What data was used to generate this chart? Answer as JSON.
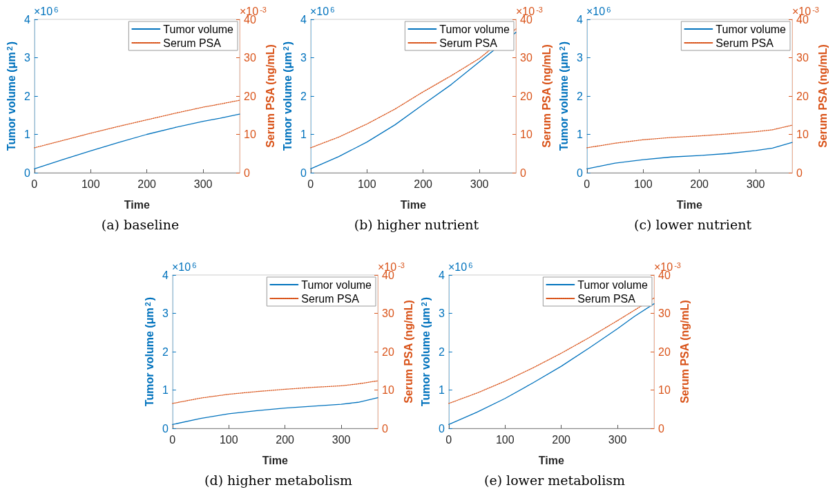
{
  "chart_data": [
    {
      "type": "line",
      "title": "(a) baseline",
      "xlabel": "Time",
      "ylabel": "Tumor volume (μm$^{2}$)",
      "y2label": "Serum PSA (ng/mL)",
      "annotations": [
        "×10$^{6}$",
        "×10$^{-3}$"
      ],
      "x": [
        0,
        50,
        100,
        150,
        200,
        250,
        300,
        330,
        365
      ],
      "xlim": [
        0,
        365
      ],
      "xticks": [
        0,
        100,
        200,
        300
      ],
      "ylim": [
        0,
        4
      ],
      "yticks": [
        0,
        1,
        2,
        3,
        4
      ],
      "y2lim": [
        0,
        40
      ],
      "y2ticks": [
        0,
        10,
        20,
        30,
        40
      ],
      "legend": "top right",
      "marker": "none",
      "series": [
        {
          "name": "Tumor volume",
          "color": "#0072bd",
          "line_style": "solid",
          "values": [
            0.1,
            0.34,
            0.57,
            0.79,
            1.0,
            1.18,
            1.34,
            1.42,
            1.53
          ]
        },
        {
          "name": "Serum PSA",
          "color": "#d95319",
          "line_style": "dotted",
          "axis": "y2",
          "values": [
            6.5,
            8.4,
            10.3,
            12.1,
            13.8,
            15.5,
            17.1,
            17.9,
            18.9
          ]
        }
      ]
    },
    {
      "type": "line",
      "title": "(b) higher nutrient",
      "xlabel": "Time",
      "ylabel": "Tumor volume (μm$^{2}$)",
      "y2label": "Serum PSA (ng/mL)",
      "annotations": [
        "×10$^{6}$",
        "×10$^{-3}$"
      ],
      "x": [
        0,
        50,
        100,
        150,
        200,
        250,
        300,
        365
      ],
      "xlim": [
        0,
        365
      ],
      "xticks": [
        0,
        100,
        200,
        300
      ],
      "ylim": [
        0,
        4
      ],
      "yticks": [
        0,
        1,
        2,
        3,
        4
      ],
      "y2lim": [
        0,
        40
      ],
      "y2ticks": [
        0,
        10,
        20,
        30,
        40
      ],
      "legend": "top right",
      "marker": "none",
      "series": [
        {
          "name": "Tumor volume",
          "color": "#0072bd",
          "line_style": "solid",
          "values": [
            0.1,
            0.42,
            0.8,
            1.25,
            1.78,
            2.3,
            2.89,
            3.66
          ]
        },
        {
          "name": "Serum PSA",
          "color": "#d95319",
          "line_style": "dotted",
          "axis": "y2",
          "values": [
            6.5,
            9.3,
            12.7,
            16.6,
            21.1,
            25.3,
            29.8,
            37.5
          ]
        }
      ]
    },
    {
      "type": "line",
      "title": "(c) lower nutrient",
      "xlabel": "Time",
      "ylabel": "Tumor volume (μm$^{2}$)",
      "y2label": "Serum PSA (ng/mL)",
      "annotations": [
        "×10$^{6}$",
        "×10$^{-3}$"
      ],
      "x": [
        0,
        50,
        100,
        150,
        200,
        250,
        300,
        330,
        365
      ],
      "xlim": [
        0,
        365
      ],
      "xticks": [
        0,
        100,
        200,
        300
      ],
      "ylim": [
        0,
        4
      ],
      "yticks": [
        0,
        1,
        2,
        3,
        4
      ],
      "y2lim": [
        0,
        40
      ],
      "y2ticks": [
        0,
        10,
        20,
        30,
        40
      ],
      "legend": "top right",
      "marker": "none",
      "series": [
        {
          "name": "Tumor volume",
          "color": "#0072bd",
          "line_style": "solid",
          "values": [
            0.1,
            0.25,
            0.34,
            0.41,
            0.45,
            0.5,
            0.58,
            0.64,
            0.79
          ]
        },
        {
          "name": "Serum PSA",
          "color": "#d95319",
          "line_style": "dotted",
          "axis": "y2",
          "values": [
            6.5,
            7.7,
            8.6,
            9.2,
            9.6,
            10.1,
            10.7,
            11.2,
            12.4
          ]
        }
      ]
    },
    {
      "type": "line",
      "title": "(d) higher metabolism",
      "xlabel": "Time",
      "ylabel": "Tumor volume (μm$^{2}$)",
      "y2label": "Serum PSA (ng/mL)",
      "annotations": [
        "×10$^{6}$",
        "×10$^{-3}$"
      ],
      "x": [
        0,
        50,
        100,
        150,
        200,
        250,
        300,
        330,
        365
      ],
      "xlim": [
        0,
        365
      ],
      "xticks": [
        0,
        100,
        200,
        300
      ],
      "ylim": [
        0,
        4
      ],
      "yticks": [
        0,
        1,
        2,
        3,
        4
      ],
      "y2lim": [
        0,
        40
      ],
      "y2ticks": [
        0,
        10,
        20,
        30,
        40
      ],
      "legend": "top right",
      "marker": "none",
      "series": [
        {
          "name": "Tumor volume",
          "color": "#0072bd",
          "line_style": "solid",
          "values": [
            0.1,
            0.26,
            0.38,
            0.46,
            0.53,
            0.58,
            0.63,
            0.68,
            0.8
          ]
        },
        {
          "name": "Serum PSA",
          "color": "#d95319",
          "line_style": "dotted",
          "axis": "y2",
          "values": [
            6.5,
            7.9,
            8.9,
            9.6,
            10.2,
            10.7,
            11.1,
            11.6,
            12.4
          ]
        }
      ]
    },
    {
      "type": "line",
      "title": "(e) lower metabolism",
      "xlabel": "Time",
      "ylabel": "Tumor volume (μm$^{2}$)",
      "y2label": "Serum PSA (ng/mL)",
      "annotations": [
        "×10$^{6}$",
        "×10$^{-3}$"
      ],
      "x": [
        0,
        50,
        100,
        150,
        200,
        250,
        300,
        330,
        365
      ],
      "xlim": [
        0,
        365
      ],
      "xticks": [
        0,
        100,
        200,
        300
      ],
      "ylim": [
        0,
        4
      ],
      "yticks": [
        0,
        1,
        2,
        3,
        4
      ],
      "y2lim": [
        0,
        40
      ],
      "y2ticks": [
        0,
        10,
        20,
        30,
        40
      ],
      "legend": "top right",
      "marker": "none",
      "series": [
        {
          "name": "Tumor volume",
          "color": "#0072bd",
          "line_style": "solid",
          "values": [
            0.1,
            0.42,
            0.78,
            1.19,
            1.62,
            2.1,
            2.6,
            2.92,
            3.25
          ]
        },
        {
          "name": "Serum PSA",
          "color": "#d95319",
          "line_style": "dotted",
          "axis": "y2",
          "values": [
            6.5,
            9.2,
            12.3,
            15.8,
            19.6,
            23.7,
            28.1,
            30.8,
            34
          ]
        }
      ]
    }
  ]
}
